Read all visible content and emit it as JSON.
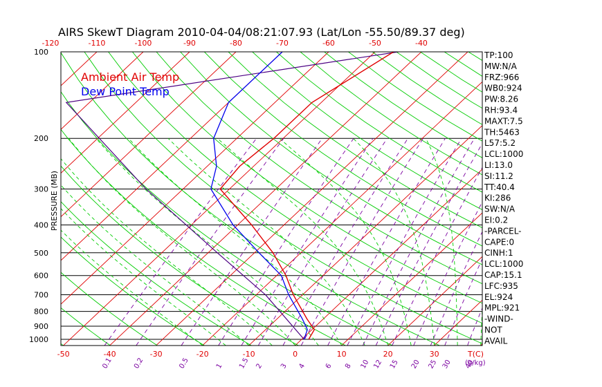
{
  "chart_data": {
    "type": "line",
    "title": "AIRS SkewT Diagram 2010-04-04/08:21:07.93 (Lat/Lon -55.50/89.37 deg)",
    "ylabel": "PRESSURE (MB)",
    "xlabel_bottom": "T(C)",
    "xlabel_mixing": "(g/kg)",
    "legend": {
      "placement": "top-left",
      "entries": [
        {
          "label": "Ambient Air Temp",
          "color": "#e00000"
        },
        {
          "label": "Dew Point Temp",
          "color": "#0000ee"
        }
      ]
    },
    "pressure_levels": [
      100,
      200,
      300,
      400,
      500,
      600,
      700,
      800,
      900,
      1000
    ],
    "top_temp_ticks": [
      -120,
      -110,
      -100,
      -90,
      -80,
      -70,
      -60,
      -50,
      -40
    ],
    "bottom_temp_ticks": [
      -50,
      -40,
      -30,
      -20,
      -10,
      0,
      10,
      20,
      30
    ],
    "mixing_ratio_labels": [
      "0.1",
      "0.2",
      "0.5",
      "1",
      "1.5",
      "2",
      "3",
      "4",
      "6",
      "8",
      "10",
      "12",
      "15",
      "20",
      "25",
      "30",
      "40"
    ],
    "temperature_profile": {
      "name": "Ambient Air Temp",
      "points": [
        {
          "p": 1000,
          "t": 1.5
        },
        {
          "p": 925,
          "t": 0.5
        },
        {
          "p": 850,
          "t": -3.5
        },
        {
          "p": 700,
          "t": -12
        },
        {
          "p": 600,
          "t": -18
        },
        {
          "p": 500,
          "t": -26
        },
        {
          "p": 400,
          "t": -37
        },
        {
          "p": 300,
          "t": -52
        },
        {
          "p": 250,
          "t": -53
        },
        {
          "p": 200,
          "t": -52
        },
        {
          "p": 150,
          "t": -52
        },
        {
          "p": 100,
          "t": -46
        }
      ]
    },
    "dewpoint_profile": {
      "name": "Dew Point Temp",
      "points": [
        {
          "p": 1000,
          "t": 0.5
        },
        {
          "p": 925,
          "t": -1
        },
        {
          "p": 850,
          "t": -4.5
        },
        {
          "p": 700,
          "t": -13
        },
        {
          "p": 600,
          "t": -19
        },
        {
          "p": 500,
          "t": -29
        },
        {
          "p": 400,
          "t": -41
        },
        {
          "p": 300,
          "t": -54
        },
        {
          "p": 250,
          "t": -58
        },
        {
          "p": 200,
          "t": -65
        },
        {
          "p": 150,
          "t": -70
        },
        {
          "p": 100,
          "t": -70
        }
      ]
    },
    "parcel_path": {
      "points": [
        {
          "p": 1000,
          "t": 0.5
        },
        {
          "p": 700,
          "t": -18
        },
        {
          "p": 500,
          "t": -38
        },
        {
          "p": 300,
          "t": -68
        },
        {
          "p": 150,
          "t": -105
        },
        {
          "p": 100,
          "t": -45
        }
      ]
    }
  },
  "indices": [
    "TP:100",
    "MW:N/A",
    "FRZ:966",
    "WB0:924",
    "PW:8.26",
    "RH:93.4",
    "MAXT:7.5",
    "TH:5463",
    "L57:5.2",
    "LCL:1000",
    "LI:13.0",
    "SI:11.2",
    "TT:40.4",
    "KI:286",
    "SW:N/A",
    "EI:0.2",
    "-PARCEL-",
    "CAPE:0",
    "CINH:1",
    "LCL:1000",
    "CAP:15.1",
    "LFC:935",
    "EL:924",
    "MPL:921",
    "-WIND-",
    "NOT",
    "AVAIL"
  ],
  "colors": {
    "temperature": "#e00000",
    "dewpoint": "#0000ee",
    "parcel": "#4b0082",
    "dry_adiabat": "#00cc00",
    "moist_adiabat": "#00cc00",
    "mixing_ratio": "#7a00a0",
    "isotherm": "#e00000"
  }
}
